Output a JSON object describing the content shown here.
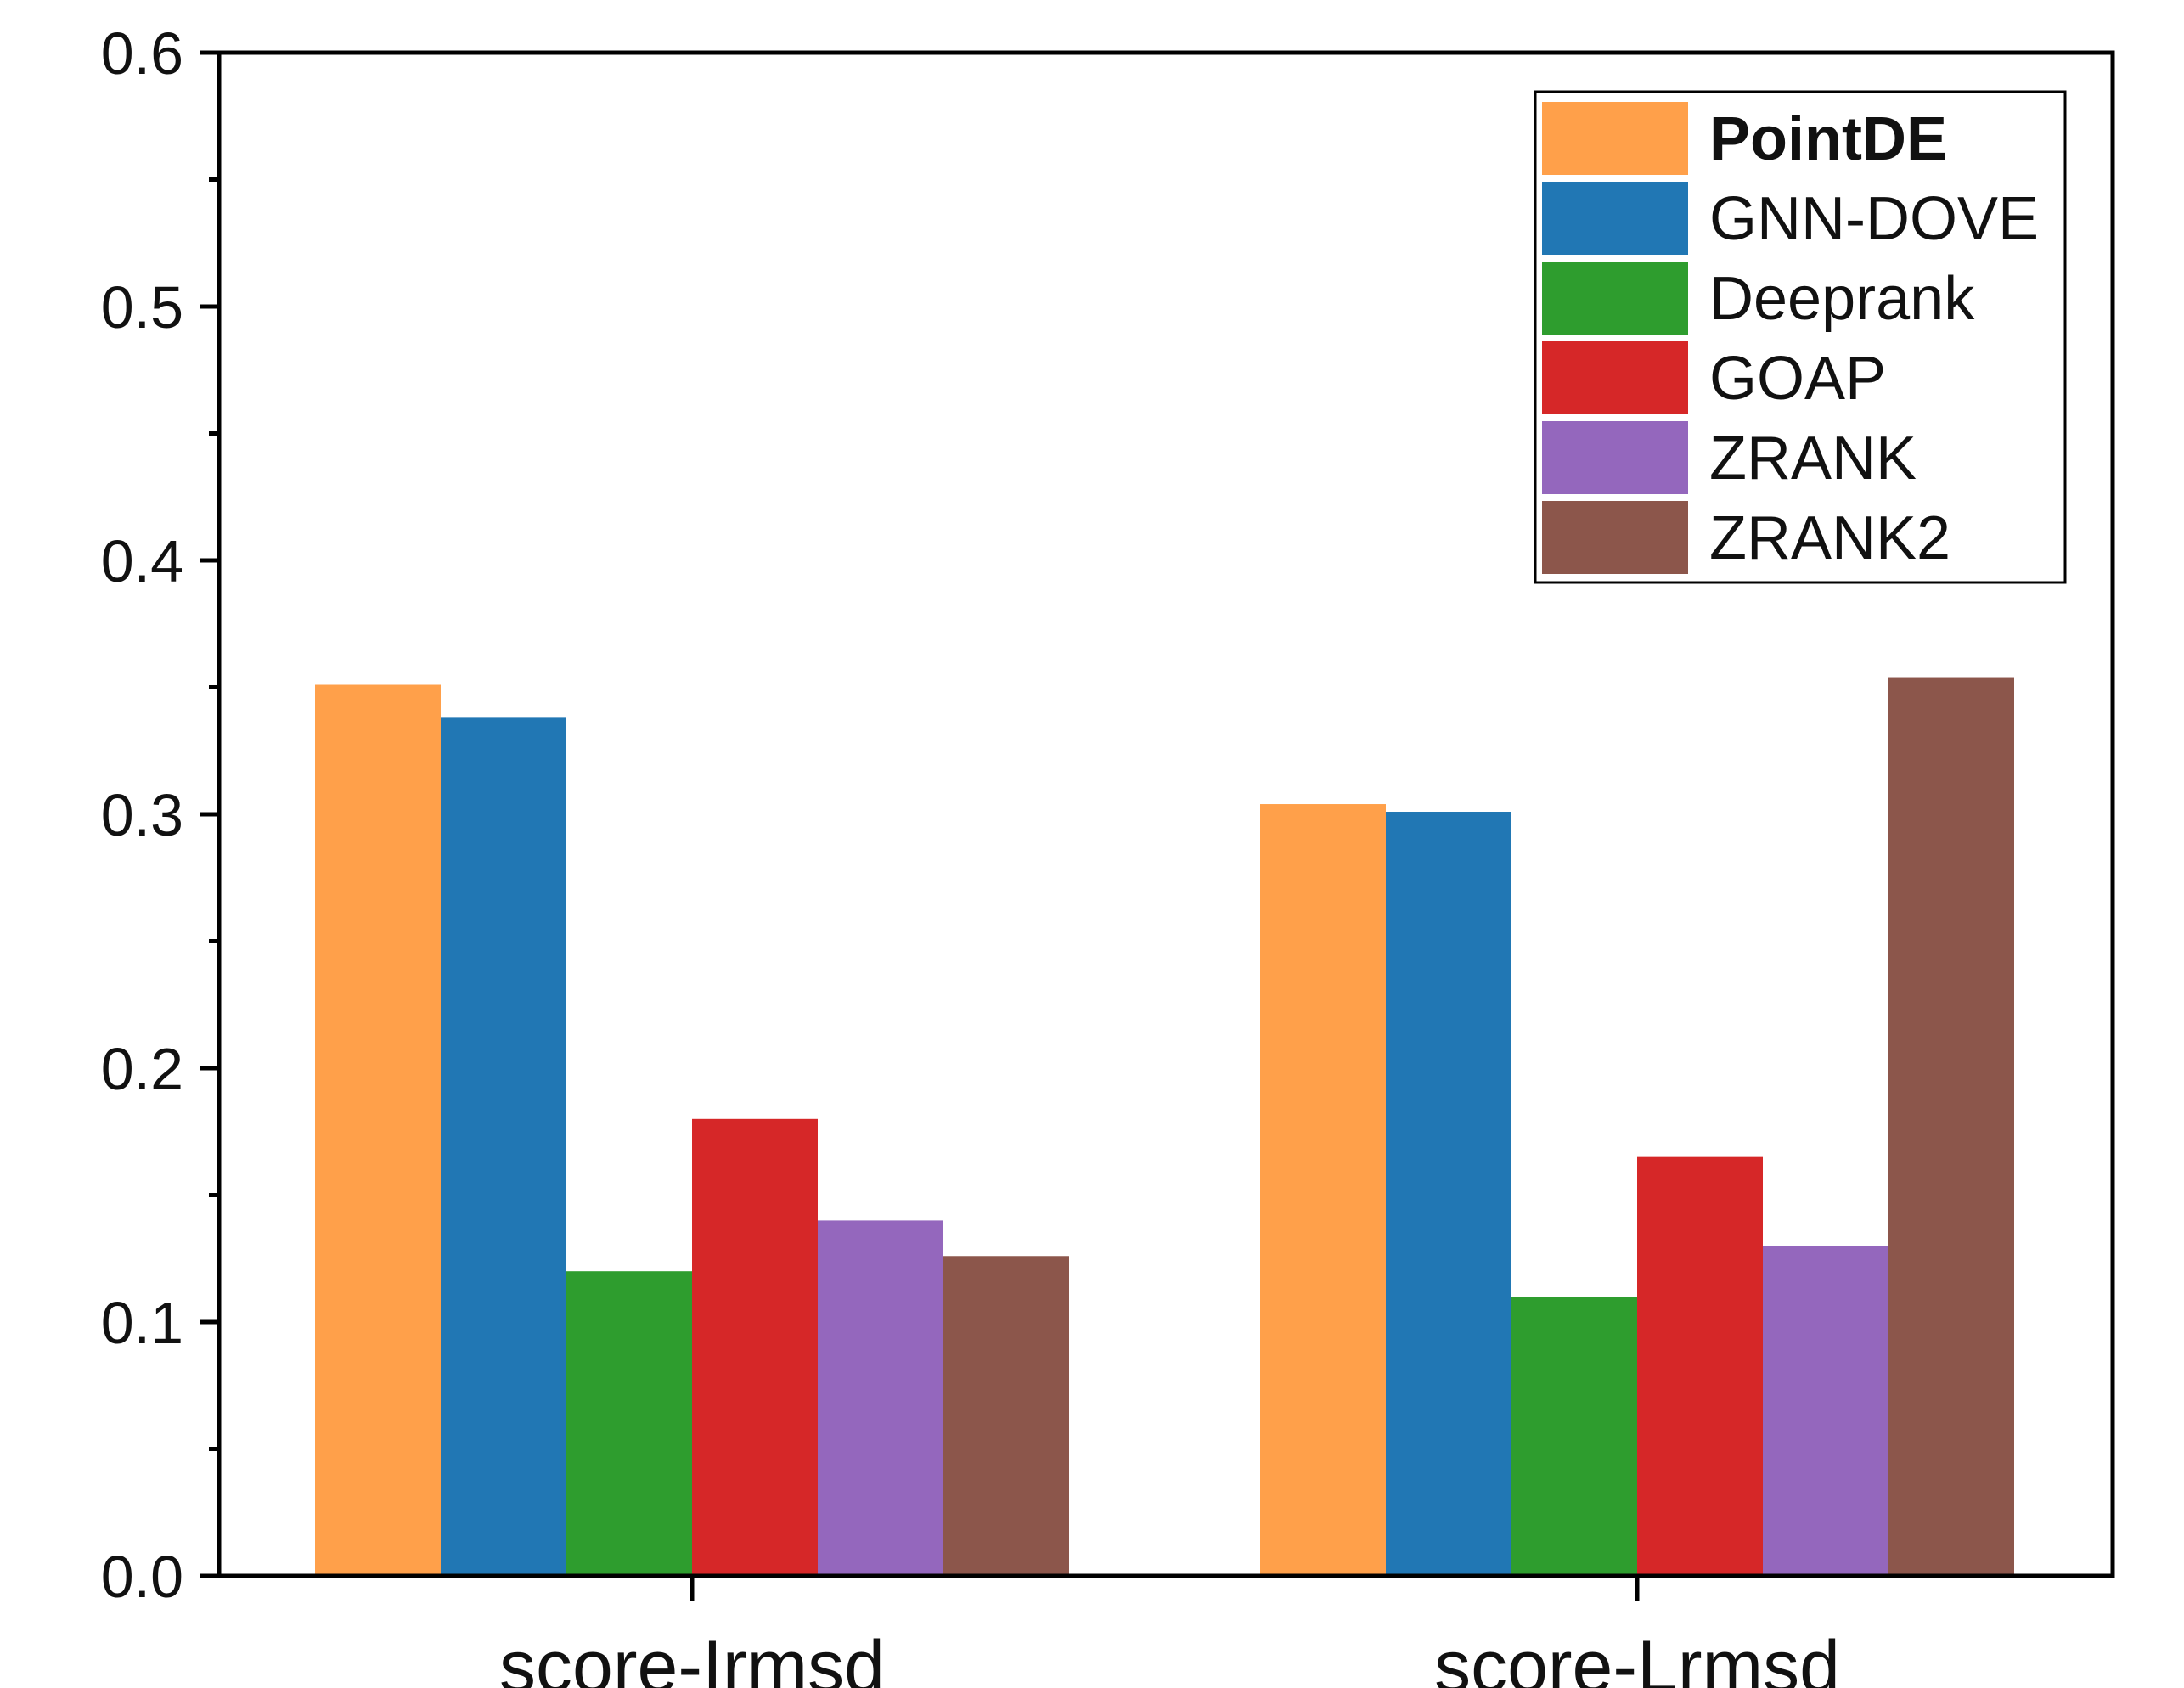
{
  "chart_data": {
    "type": "bar",
    "title": "",
    "xlabel": "",
    "ylabel": "",
    "categories": [
      "score-Irmsd",
      "score-Lrmsd"
    ],
    "ylim": [
      0,
      0.6
    ],
    "yticks": [
      "0.0",
      "0.1",
      "0.2",
      "0.3",
      "0.4",
      "0.5",
      "0.6"
    ],
    "legend_position": "top-right",
    "grid": false,
    "series": [
      {
        "name": "PointDE",
        "color": "#FFA04A",
        "values": [
          0.351,
          0.304
        ],
        "bold": true
      },
      {
        "name": "GNN-DOVE",
        "color": "#2177B4",
        "values": [
          0.338,
          0.301
        ]
      },
      {
        "name": "Deeprank",
        "color": "#2E9D2E",
        "values": [
          0.12,
          0.11
        ]
      },
      {
        "name": "GOAP",
        "color": "#D62728",
        "values": [
          0.18,
          0.165
        ]
      },
      {
        "name": "ZRANK",
        "color": "#9467BD",
        "values": [
          0.14,
          0.13
        ]
      },
      {
        "name": "ZRANK2",
        "color": "#8C564B",
        "values": [
          0.126,
          0.354
        ]
      }
    ]
  }
}
